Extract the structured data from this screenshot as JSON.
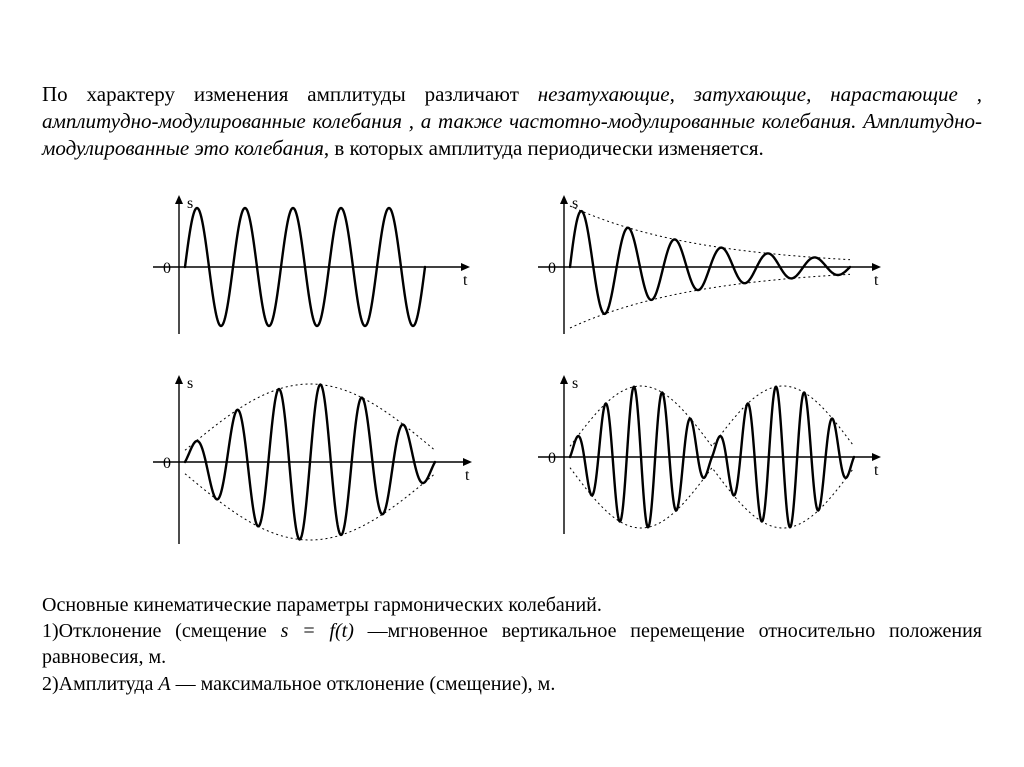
{
  "intro": {
    "seg1": "По характеру изменения амплитуды различают ",
    "seg2_italic": "незатухающие, затухающие, нарастающие , амплитудно-модулированные колебания , а также частотно-модулированные колебания. Амплитудно-модулированные это колебания",
    "seg3": ", в которых амплитуда периодически изменяется."
  },
  "chart_style": {
    "curve_stroke_width": 2.4,
    "axis_stroke_width": 1.4,
    "envelope_dash": "2,3",
    "envelope_stroke_width": 1.0,
    "axis_color": "#000000",
    "curve_color": "#000000",
    "envelope_color": "#000000",
    "ylabel": "s",
    "xlabel": "t",
    "zerolabel": "0"
  },
  "charts": {
    "undamped": {
      "type": "oscillation",
      "envelope": "constant",
      "amplitude": 1.0,
      "cycles": 5,
      "view_w": 340,
      "view_h": 150
    },
    "damped": {
      "type": "oscillation",
      "envelope": "exponential-decay",
      "amplitude_start": 1.0,
      "amplitude_end": 0.12,
      "cycles": 6,
      "view_w": 360,
      "view_h": 150
    },
    "rising": {
      "type": "oscillation",
      "envelope": "eye-growing",
      "amplitude_start": 0.15,
      "amplitude_end": 1.0,
      "cycles": 6,
      "view_w": 340,
      "view_h": 180
    },
    "am": {
      "type": "oscillation",
      "envelope": "double-eye",
      "amplitude_min": 0.15,
      "amplitude_max": 1.0,
      "mod_cycles": 2,
      "carrier_per_lobe": 5,
      "view_w": 360,
      "view_h": 170
    }
  },
  "params": {
    "heading": "Основные кинематические параметры гармонических колебаний.",
    "item1_a": "1)Отклонение (смещение ",
    "item1_eq": "s = f(t)",
    "item1_b": " —мгновенное вертикальное перемещение относительно положения равновесия, м.",
    "item2_a": "2)Амплитуда ",
    "item2_sym": "A",
    "item2_b": " — максимальное отклонение (смещение), м."
  }
}
